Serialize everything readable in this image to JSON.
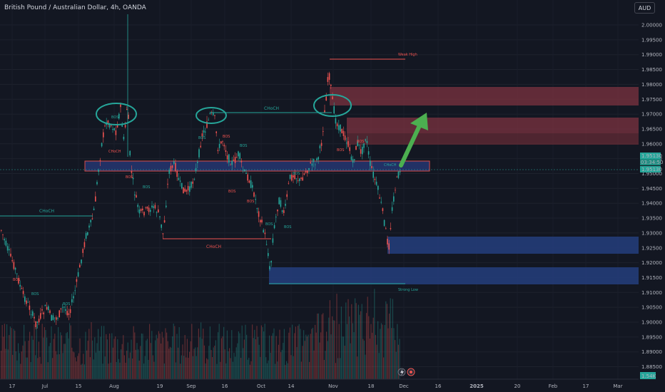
{
  "header": {
    "symbol_title": "British Pound / Australian Dollar, 4h, OANDA",
    "currency_button": "AUD"
  },
  "price_axis": {
    "ticks": [
      "2.00000",
      "1.99500",
      "1.99000",
      "1.98500",
      "1.98000",
      "1.97500",
      "1.97000",
      "1.96500",
      "1.96000",
      "1.95500",
      "1.95000",
      "1.94500",
      "1.94000",
      "1.93500",
      "1.93000",
      "1.92500",
      "1.92000",
      "1.91500",
      "1.91000",
      "1.90500",
      "1.90000",
      "1.89500",
      "1.89000",
      "1.88500"
    ],
    "last_price_label": "1.95130",
    "countdown_label": "03:34:50",
    "ask_label": "1.95130",
    "volume_label": "1.54K"
  },
  "time_axis": {
    "ticks": [
      "17",
      "Jul",
      "15",
      "Aug",
      "19",
      "Sep",
      "16",
      "Oct",
      "14",
      "Nov",
      "18",
      "Dec",
      "16",
      "2025",
      "20",
      "Feb",
      "17",
      "Mar"
    ]
  },
  "annotations": {
    "choch_labels": [
      "CHoCH",
      "CHoCH",
      "CHoCH"
    ],
    "weak_high": "Weak High",
    "strong_low": "Strong Low",
    "small_labels": [
      "BOS",
      "CHoCH",
      "BOS",
      "BOS",
      "BOS",
      "BOS",
      "BOS",
      "BOS",
      "BOS",
      "BOS",
      "BOS",
      "BOS",
      "BOS",
      "BOS",
      "BOS",
      "BOS",
      "BOS",
      "CHoCH"
    ]
  },
  "colors": {
    "background": "#131722",
    "bull": "#26a69a",
    "bear": "#ef5350",
    "supply_zone": "#8b3a44",
    "demand_zone": "#2a3f7a",
    "arrow": "#4caf50",
    "choch_line": "#26a69a"
  },
  "bottom_icons": [
    "lightning-icon",
    "tradingview-logo-icon"
  ]
}
